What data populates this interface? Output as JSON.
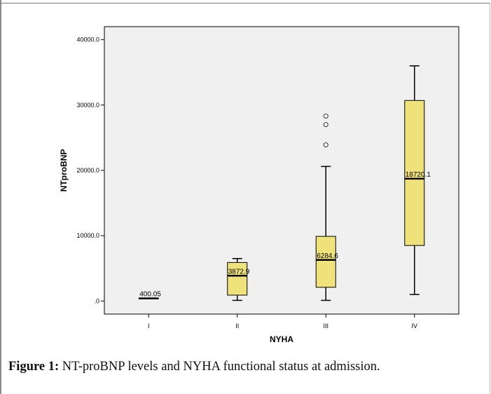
{
  "chart_data": {
    "type": "box",
    "xlabel": "NYHA",
    "ylabel": "NTproBNP",
    "categories": [
      "I",
      "II",
      "III",
      "IV"
    ],
    "ylim": [
      -2000,
      42000
    ],
    "yticks": [
      {
        "value": 0,
        "label": ".0"
      },
      {
        "value": 10000,
        "label": "10000.0"
      },
      {
        "value": 20000,
        "label": "20000.0"
      },
      {
        "value": 30000,
        "label": "30000.0"
      },
      {
        "value": 40000,
        "label": "40000.0"
      }
    ],
    "boxes": [
      {
        "category": "I",
        "min": 400.05,
        "q1": 400.05,
        "median": 400.05,
        "q3": 400.05,
        "max": 400.05,
        "median_label": "400.05",
        "outliers": []
      },
      {
        "category": "II",
        "min": 100,
        "q1": 900,
        "median": 3872.9,
        "q3": 5900,
        "max": 6500,
        "median_label": "3872.9",
        "outliers": []
      },
      {
        "category": "III",
        "min": 100,
        "q1": 2100,
        "median": 6284.6,
        "q3": 9900,
        "max": 20600,
        "median_label": "6284.6",
        "outliers": [
          23900,
          27000,
          28300
        ]
      },
      {
        "category": "IV",
        "min": 1000,
        "q1": 8500,
        "median": 18720.1,
        "q3": 30700,
        "max": 36000,
        "median_label": "18720.1",
        "outliers": []
      }
    ],
    "colors": {
      "plot_bg": "#f0f0f0",
      "box_fill": "#f0e27a",
      "line": "#000000"
    }
  },
  "caption": {
    "label": "Figure 1:",
    "text": " NT-proBNP levels and NYHA functional status at admission."
  }
}
